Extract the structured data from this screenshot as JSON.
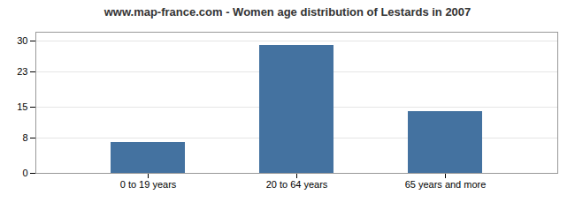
{
  "chart_data": {
    "type": "bar",
    "title": "www.map-france.com - Women age distribution of Lestards in 2007",
    "categories": [
      "0 to 19 years",
      "20 to 64 years",
      "65 years and more"
    ],
    "values": [
      7,
      29,
      14
    ],
    "color": "#4472a0",
    "ylim": [
      0,
      32
    ],
    "yticks": [
      0,
      8,
      15,
      23,
      30
    ],
    "grid": true
  }
}
